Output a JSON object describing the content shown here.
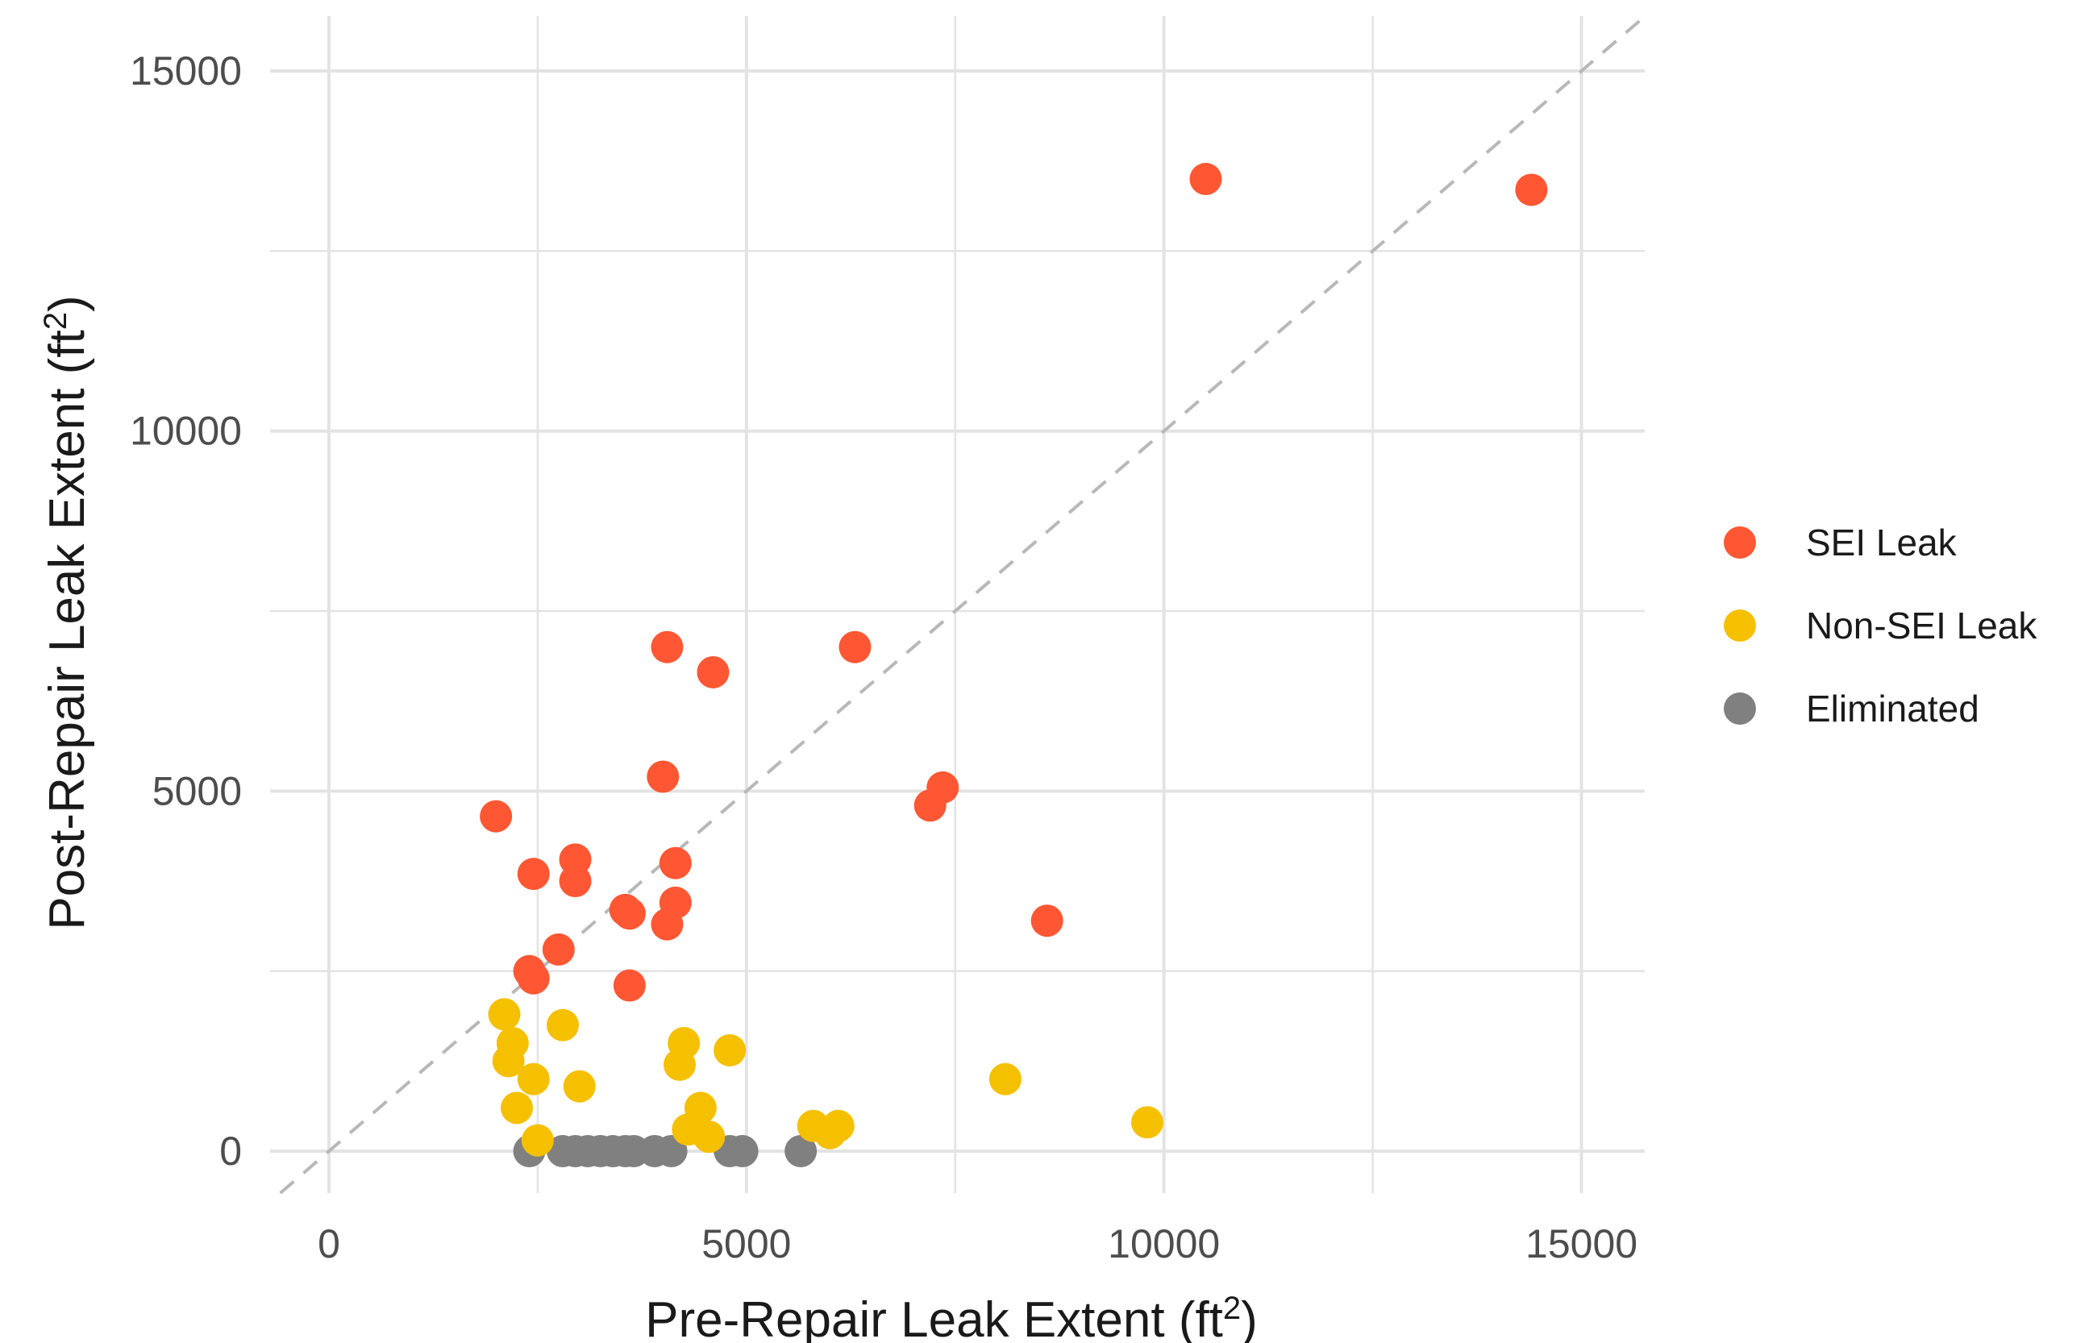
{
  "chart_data": {
    "type": "scatter",
    "title": "",
    "xlabel": "Pre-Repair Leak Extent (ft",
    "ylabel": "Post-Repair Leak Extent (ft",
    "unit_superscript": "2",
    "unit_close": ")",
    "xlim": [
      -700,
      15800
    ],
    "ylim": [
      -700,
      15800
    ],
    "x_ticks": [
      0,
      5000,
      10000,
      15000
    ],
    "y_ticks": [
      0,
      5000,
      10000,
      15000
    ],
    "x_tick_labels": [
      "0",
      "5000",
      "10000",
      "15000"
    ],
    "y_tick_labels": [
      "0",
      "5000",
      "10000",
      "15000"
    ],
    "grid": true,
    "reference_line": "y = x (dashed)",
    "legend_position": "right",
    "series": [
      {
        "name": "SEI Leak",
        "color": "#ff5733",
        "x": [
          2000,
          2450,
          2950,
          2950,
          2450,
          2400,
          2750,
          3550,
          3600,
          3600,
          4000,
          4050,
          4050,
          4150,
          4150,
          4600,
          6300,
          7200,
          7350,
          8600,
          10500,
          14400
        ],
        "y": [
          4650,
          3850,
          4050,
          3750,
          2400,
          2500,
          2800,
          3350,
          3300,
          2300,
          5200,
          7000,
          3150,
          3450,
          4000,
          6650,
          7000,
          4800,
          5050,
          3200,
          13500,
          13350
        ]
      },
      {
        "name": "Non-SEI Leak",
        "color": "#f5c000",
        "x": [
          2100,
          2200,
          2150,
          2250,
          2450,
          2500,
          2800,
          3000,
          4200,
          4250,
          4300,
          4450,
          4550,
          4800,
          5800,
          6000,
          6100,
          8100,
          9800
        ],
        "y": [
          1900,
          1500,
          1250,
          600,
          1000,
          150,
          1750,
          900,
          1200,
          1500,
          300,
          600,
          200,
          1400,
          350,
          250,
          350,
          1000,
          400
        ]
      },
      {
        "name": "Eliminated",
        "color": "#808080",
        "x": [
          2400,
          2800,
          2950,
          3100,
          3250,
          3400,
          3550,
          3650,
          3900,
          4100,
          4800,
          4950,
          5650
        ],
        "y": [
          0,
          0,
          0,
          0,
          0,
          0,
          0,
          0,
          0,
          0,
          0,
          0,
          0
        ]
      }
    ]
  }
}
